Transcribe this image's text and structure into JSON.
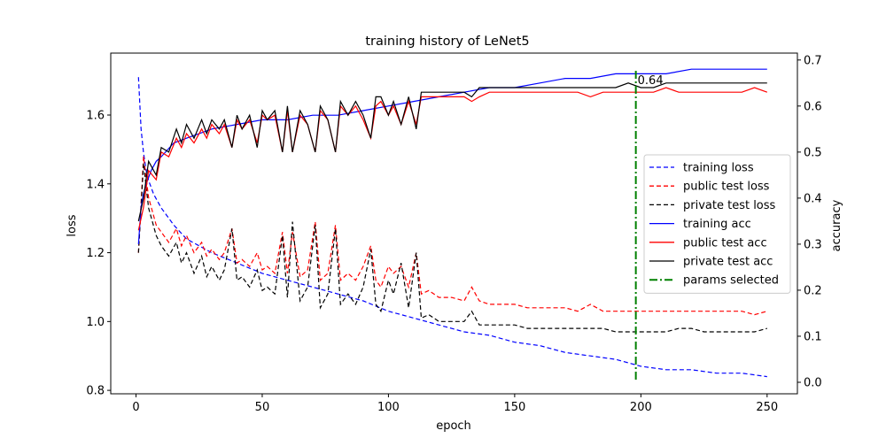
{
  "chart_data": {
    "type": "line",
    "title": "training history of LeNet5",
    "xlabel": "epoch",
    "ylabel_left": "loss",
    "ylabel_right": "accuracy",
    "xlim": [
      -10,
      262
    ],
    "ylim_left": [
      0.79,
      1.78
    ],
    "ylim_right": [
      -0.025,
      0.715
    ],
    "xticks": [
      0,
      50,
      100,
      150,
      200,
      250
    ],
    "yticks_left": [
      0.8,
      1.0,
      1.2,
      1.4,
      1.6
    ],
    "yticks_right": [
      0.0,
      0.1,
      0.2,
      0.3,
      0.4,
      0.5,
      0.6,
      0.7
    ],
    "grid": false,
    "legend_position": "center-right",
    "series": [
      {
        "name": "training loss",
        "axis": "left",
        "color": "#0000ff",
        "style": "dashed",
        "x": [
          1,
          2,
          3,
          4,
          5,
          7,
          10,
          15,
          20,
          30,
          40,
          50,
          60,
          70,
          80,
          90,
          100,
          110,
          120,
          130,
          140,
          150,
          160,
          170,
          180,
          190,
          200,
          210,
          220,
          230,
          240,
          250
        ],
        "values": [
          1.71,
          1.56,
          1.49,
          1.44,
          1.41,
          1.37,
          1.33,
          1.28,
          1.24,
          1.2,
          1.17,
          1.14,
          1.12,
          1.1,
          1.08,
          1.06,
          1.03,
          1.01,
          0.99,
          0.97,
          0.96,
          0.94,
          0.93,
          0.91,
          0.9,
          0.89,
          0.87,
          0.86,
          0.86,
          0.85,
          0.85,
          0.84
        ]
      },
      {
        "name": "public test loss",
        "axis": "left",
        "color": "#ff0000",
        "style": "dashed",
        "x": [
          1,
          3,
          5,
          8,
          10,
          13,
          16,
          18,
          20,
          23,
          26,
          28,
          30,
          33,
          35,
          38,
          40,
          42,
          45,
          48,
          50,
          52,
          55,
          58,
          60,
          62,
          65,
          68,
          71,
          73,
          76,
          79,
          81,
          84,
          87,
          90,
          93,
          95,
          97,
          100,
          102,
          105,
          108,
          111,
          113,
          116,
          120,
          125,
          130,
          133,
          136,
          140,
          145,
          150,
          155,
          160,
          165,
          170,
          175,
          180,
          185,
          190,
          195,
          200,
          205,
          210,
          215,
          220,
          225,
          230,
          235,
          240,
          245,
          250
        ],
        "values": [
          1.2,
          1.48,
          1.36,
          1.28,
          1.26,
          1.23,
          1.27,
          1.22,
          1.25,
          1.2,
          1.23,
          1.19,
          1.21,
          1.18,
          1.2,
          1.27,
          1.17,
          1.18,
          1.16,
          1.2,
          1.15,
          1.16,
          1.14,
          1.26,
          1.14,
          1.26,
          1.13,
          1.15,
          1.29,
          1.12,
          1.14,
          1.28,
          1.12,
          1.14,
          1.12,
          1.16,
          1.22,
          1.12,
          1.1,
          1.16,
          1.14,
          1.16,
          1.1,
          1.2,
          1.08,
          1.09,
          1.07,
          1.07,
          1.06,
          1.1,
          1.06,
          1.05,
          1.05,
          1.05,
          1.04,
          1.04,
          1.04,
          1.04,
          1.03,
          1.05,
          1.03,
          1.03,
          1.03,
          1.03,
          1.03,
          1.03,
          1.03,
          1.03,
          1.03,
          1.03,
          1.03,
          1.03,
          1.02,
          1.03
        ]
      },
      {
        "name": "private test loss",
        "axis": "left",
        "color": "#000000",
        "style": "dashed",
        "x": [
          1,
          3,
          5,
          8,
          10,
          13,
          16,
          18,
          20,
          23,
          26,
          28,
          30,
          33,
          35,
          38,
          40,
          42,
          45,
          48,
          50,
          52,
          55,
          58,
          60,
          62,
          65,
          68,
          71,
          73,
          76,
          79,
          81,
          84,
          87,
          90,
          93,
          95,
          97,
          100,
          102,
          105,
          108,
          111,
          113,
          116,
          120,
          125,
          130,
          133,
          136,
          140,
          145,
          150,
          155,
          160,
          165,
          170,
          175,
          180,
          185,
          190,
          195,
          200,
          205,
          210,
          215,
          220,
          225,
          230,
          235,
          240,
          245,
          250
        ],
        "values": [
          1.2,
          1.46,
          1.33,
          1.25,
          1.22,
          1.19,
          1.23,
          1.17,
          1.2,
          1.14,
          1.19,
          1.13,
          1.16,
          1.12,
          1.15,
          1.27,
          1.12,
          1.13,
          1.1,
          1.15,
          1.09,
          1.1,
          1.08,
          1.25,
          1.07,
          1.29,
          1.06,
          1.1,
          1.28,
          1.04,
          1.08,
          1.27,
          1.05,
          1.08,
          1.05,
          1.1,
          1.21,
          1.05,
          1.03,
          1.12,
          1.08,
          1.17,
          1.04,
          1.2,
          1.01,
          1.02,
          1.0,
          1.0,
          1.0,
          1.03,
          0.99,
          0.99,
          0.99,
          0.99,
          0.98,
          0.98,
          0.98,
          0.98,
          0.98,
          0.98,
          0.98,
          0.97,
          0.97,
          0.97,
          0.97,
          0.97,
          0.98,
          0.98,
          0.97,
          0.97,
          0.97,
          0.97,
          0.97,
          0.98
        ]
      },
      {
        "name": "training acc",
        "axis": "right",
        "color": "#0000ff",
        "style": "solid",
        "x": [
          1,
          2,
          3,
          4,
          6,
          8,
          10,
          15,
          20,
          30,
          40,
          50,
          60,
          70,
          80,
          90,
          100,
          110,
          120,
          130,
          140,
          150,
          160,
          170,
          180,
          190,
          200,
          210,
          220,
          230,
          240,
          250
        ],
        "values": [
          0.3,
          0.38,
          0.41,
          0.43,
          0.46,
          0.48,
          0.49,
          0.52,
          0.53,
          0.55,
          0.56,
          0.57,
          0.57,
          0.58,
          0.58,
          0.59,
          0.6,
          0.61,
          0.62,
          0.63,
          0.64,
          0.64,
          0.65,
          0.66,
          0.66,
          0.67,
          0.67,
          0.67,
          0.68,
          0.68,
          0.68,
          0.68
        ]
      },
      {
        "name": "public test acc",
        "axis": "right",
        "color": "#ff0000",
        "style": "solid",
        "x": [
          1,
          3,
          5,
          8,
          10,
          13,
          16,
          18,
          20,
          23,
          26,
          28,
          30,
          33,
          35,
          38,
          40,
          42,
          45,
          48,
          50,
          52,
          55,
          58,
          60,
          62,
          65,
          68,
          71,
          73,
          76,
          79,
          81,
          84,
          87,
          90,
          93,
          95,
          97,
          100,
          102,
          105,
          108,
          111,
          113,
          116,
          120,
          125,
          130,
          133,
          136,
          140,
          145,
          150,
          155,
          160,
          165,
          170,
          175,
          180,
          185,
          190,
          195,
          200,
          205,
          210,
          215,
          220,
          225,
          230,
          235,
          240,
          245,
          250
        ],
        "values": [
          0.33,
          0.38,
          0.46,
          0.44,
          0.5,
          0.49,
          0.53,
          0.51,
          0.54,
          0.52,
          0.55,
          0.53,
          0.56,
          0.54,
          0.56,
          0.51,
          0.57,
          0.55,
          0.57,
          0.52,
          0.58,
          0.57,
          0.58,
          0.5,
          0.59,
          0.5,
          0.58,
          0.56,
          0.5,
          0.59,
          0.57,
          0.5,
          0.6,
          0.58,
          0.6,
          0.57,
          0.53,
          0.6,
          0.61,
          0.58,
          0.6,
          0.56,
          0.61,
          0.56,
          0.62,
          0.62,
          0.62,
          0.62,
          0.62,
          0.61,
          0.62,
          0.63,
          0.63,
          0.63,
          0.63,
          0.63,
          0.63,
          0.63,
          0.63,
          0.62,
          0.63,
          0.63,
          0.63,
          0.63,
          0.63,
          0.64,
          0.63,
          0.63,
          0.63,
          0.63,
          0.63,
          0.63,
          0.64,
          0.63
        ]
      },
      {
        "name": "private test acc",
        "axis": "right",
        "color": "#000000",
        "style": "solid",
        "x": [
          1,
          3,
          5,
          8,
          10,
          13,
          16,
          18,
          20,
          23,
          26,
          28,
          30,
          33,
          35,
          38,
          40,
          42,
          45,
          48,
          50,
          52,
          55,
          58,
          60,
          62,
          65,
          68,
          71,
          73,
          76,
          79,
          81,
          84,
          87,
          90,
          93,
          95,
          97,
          100,
          102,
          105,
          108,
          111,
          113,
          116,
          120,
          125,
          130,
          133,
          136,
          140,
          145,
          150,
          155,
          160,
          165,
          170,
          175,
          180,
          185,
          190,
          195,
          200,
          205,
          210,
          215,
          220,
          225,
          230,
          235,
          240,
          245,
          250
        ],
        "values": [
          0.35,
          0.4,
          0.48,
          0.45,
          0.51,
          0.5,
          0.55,
          0.52,
          0.56,
          0.53,
          0.57,
          0.54,
          0.57,
          0.55,
          0.57,
          0.51,
          0.58,
          0.55,
          0.58,
          0.51,
          0.59,
          0.57,
          0.59,
          0.5,
          0.6,
          0.5,
          0.59,
          0.56,
          0.5,
          0.6,
          0.57,
          0.5,
          0.61,
          0.58,
          0.61,
          0.58,
          0.53,
          0.62,
          0.62,
          0.58,
          0.61,
          0.56,
          0.62,
          0.55,
          0.63,
          0.63,
          0.63,
          0.63,
          0.63,
          0.62,
          0.64,
          0.64,
          0.64,
          0.64,
          0.64,
          0.64,
          0.64,
          0.64,
          0.64,
          0.64,
          0.64,
          0.64,
          0.65,
          0.64,
          0.64,
          0.65,
          0.65,
          0.65,
          0.65,
          0.65,
          0.65,
          0.65,
          0.65,
          0.65
        ]
      }
    ],
    "marker": {
      "name": "params selected",
      "x": 198,
      "accuracy": 0.64,
      "label": "0.64",
      "color": "#008000",
      "style": "dashdot"
    },
    "legend_entries": [
      "training loss",
      "public test loss",
      "private test loss",
      "training acc",
      "public test acc",
      "private test acc",
      "params selected"
    ]
  }
}
